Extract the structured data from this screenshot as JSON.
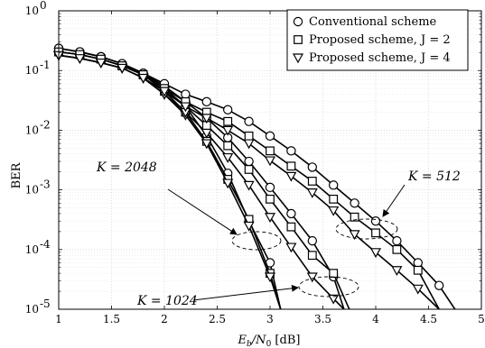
{
  "chart_data": {
    "type": "line",
    "xlabel_main": "E",
    "xlabel_sub1": "b",
    "xlabel_mid": "/N",
    "xlabel_sub2": "0",
    "xlabel_unit": " [dB]",
    "ylabel": "BER",
    "x_scale": "linear",
    "y_scale": "log",
    "xlim": [
      1,
      5
    ],
    "ylim": [
      1e-05,
      1
    ],
    "x_ticks": [
      1,
      1.5,
      2,
      2.5,
      3,
      3.5,
      4,
      4.5,
      5
    ],
    "x_tick_labels": [
      "1",
      "1.5",
      "2",
      "2.5",
      "3",
      "3.5",
      "4",
      "4.5",
      "5"
    ],
    "y_ticks": [
      1e-05,
      0.0001,
      0.001,
      0.01,
      0.1,
      1
    ],
    "y_tick_bases": [
      "10",
      "10",
      "10",
      "10",
      "10",
      "10"
    ],
    "y_tick_exponents": [
      "-5",
      "-4",
      "-3",
      "-2",
      "-1",
      "0"
    ],
    "grid": true,
    "legend_position": "top-right",
    "legend": [
      {
        "marker": "circle",
        "label": "Conventional scheme"
      },
      {
        "marker": "square",
        "label": "Proposed scheme, J = 2"
      },
      {
        "marker": "triangle",
        "label": "Proposed scheme, J = 4"
      }
    ],
    "annotations": [
      {
        "text": "K = 2048",
        "ellipse_center": [
          2.75,
          0.00012
        ]
      },
      {
        "text": "K = 512",
        "ellipse_center": [
          3.95,
          0.00022
        ]
      },
      {
        "text": "K = 1024",
        "ellipse_center": [
          3.6,
          2.2e-05
        ]
      }
    ],
    "series": [
      {
        "marker": "circle",
        "group": "K = 2048",
        "x": [
          1.0,
          1.2,
          1.4,
          1.6,
          1.8,
          2.0,
          2.2,
          2.4,
          2.6,
          2.8,
          3.0,
          3.1
        ],
        "y": [
          0.235,
          0.205,
          0.17,
          0.13,
          0.09,
          0.05,
          0.025,
          0.008,
          0.0019,
          0.0003,
          6e-05,
          1e-05
        ]
      },
      {
        "marker": "square",
        "group": "K = 2048",
        "x": [
          1.0,
          1.2,
          1.4,
          1.6,
          1.8,
          2.0,
          2.2,
          2.4,
          2.6,
          2.8,
          3.0,
          3.1
        ],
        "y": [
          0.205,
          0.185,
          0.155,
          0.12,
          0.085,
          0.045,
          0.02,
          0.0065,
          0.0015,
          0.00032,
          4e-05,
          1e-05
        ]
      },
      {
        "marker": "triangle",
        "group": "K = 2048",
        "x": [
          1.0,
          1.2,
          1.4,
          1.6,
          1.8,
          2.0,
          2.2,
          2.4,
          2.6,
          2.8,
          3.0,
          3.1
        ],
        "y": [
          0.18,
          0.16,
          0.135,
          0.11,
          0.075,
          0.04,
          0.018,
          0.006,
          0.0013,
          0.00025,
          3.5e-05,
          1e-05
        ]
      },
      {
        "marker": "circle",
        "group": "K = 1024",
        "x": [
          1.0,
          1.2,
          1.4,
          1.6,
          1.8,
          2.0,
          2.2,
          2.4,
          2.6,
          2.8,
          3.0,
          3.2,
          3.4,
          3.6,
          3.7
        ],
        "y": [
          0.235,
          0.205,
          0.17,
          0.13,
          0.09,
          0.055,
          0.03,
          0.016,
          0.0075,
          0.003,
          0.0011,
          0.0004,
          0.00014,
          3.5e-05,
          1e-05
        ]
      },
      {
        "marker": "square",
        "group": "K = 1024",
        "x": [
          1.0,
          1.2,
          1.4,
          1.6,
          1.8,
          2.0,
          2.2,
          2.4,
          2.6,
          2.8,
          3.0,
          3.2,
          3.4,
          3.6,
          3.75
        ],
        "y": [
          0.205,
          0.185,
          0.155,
          0.12,
          0.085,
          0.05,
          0.025,
          0.012,
          0.0055,
          0.0022,
          0.0007,
          0.00024,
          8e-05,
          4e-05,
          1e-05
        ]
      },
      {
        "marker": "triangle",
        "group": "K = 1024",
        "x": [
          1.0,
          1.2,
          1.4,
          1.6,
          1.8,
          2.0,
          2.2,
          2.4,
          2.6,
          2.8,
          3.0,
          3.2,
          3.4,
          3.6,
          3.7
        ],
        "y": [
          0.18,
          0.16,
          0.135,
          0.11,
          0.075,
          0.04,
          0.02,
          0.009,
          0.0035,
          0.0012,
          0.00035,
          0.00011,
          3.5e-05,
          1.5e-05,
          1e-05
        ]
      },
      {
        "marker": "circle",
        "group": "K = 512",
        "x": [
          1.0,
          1.2,
          1.4,
          1.6,
          1.8,
          2.0,
          2.2,
          2.4,
          2.6,
          2.8,
          3.0,
          3.2,
          3.4,
          3.6,
          3.8,
          4.0,
          4.2,
          4.4,
          4.6,
          4.75
        ],
        "y": [
          0.235,
          0.205,
          0.17,
          0.13,
          0.09,
          0.06,
          0.04,
          0.03,
          0.022,
          0.014,
          0.008,
          0.0045,
          0.0024,
          0.0012,
          0.0006,
          0.0003,
          0.00014,
          6e-05,
          2.5e-05,
          1e-05
        ]
      },
      {
        "marker": "square",
        "group": "K = 512",
        "x": [
          1.0,
          1.2,
          1.4,
          1.6,
          1.8,
          2.0,
          2.2,
          2.4,
          2.6,
          2.8,
          3.0,
          3.2,
          3.4,
          3.6,
          3.8,
          4.0,
          4.2,
          4.4,
          4.6
        ],
        "y": [
          0.205,
          0.185,
          0.155,
          0.12,
          0.085,
          0.05,
          0.03,
          0.02,
          0.014,
          0.008,
          0.0045,
          0.0025,
          0.0014,
          0.0007,
          0.00035,
          0.00019,
          0.0001,
          4.5e-05,
          1e-05
        ]
      },
      {
        "marker": "triangle",
        "group": "K = 512",
        "x": [
          1.0,
          1.2,
          1.4,
          1.6,
          1.8,
          2.0,
          2.2,
          2.4,
          2.6,
          2.8,
          3.0,
          3.2,
          3.4,
          3.6,
          3.8,
          4.0,
          4.2,
          4.4,
          4.6
        ],
        "y": [
          0.18,
          0.16,
          0.135,
          0.11,
          0.075,
          0.045,
          0.025,
          0.016,
          0.01,
          0.006,
          0.0031,
          0.0017,
          0.0009,
          0.00045,
          0.00018,
          9e-05,
          4.5e-05,
          2.2e-05,
          1e-05
        ]
      }
    ]
  }
}
